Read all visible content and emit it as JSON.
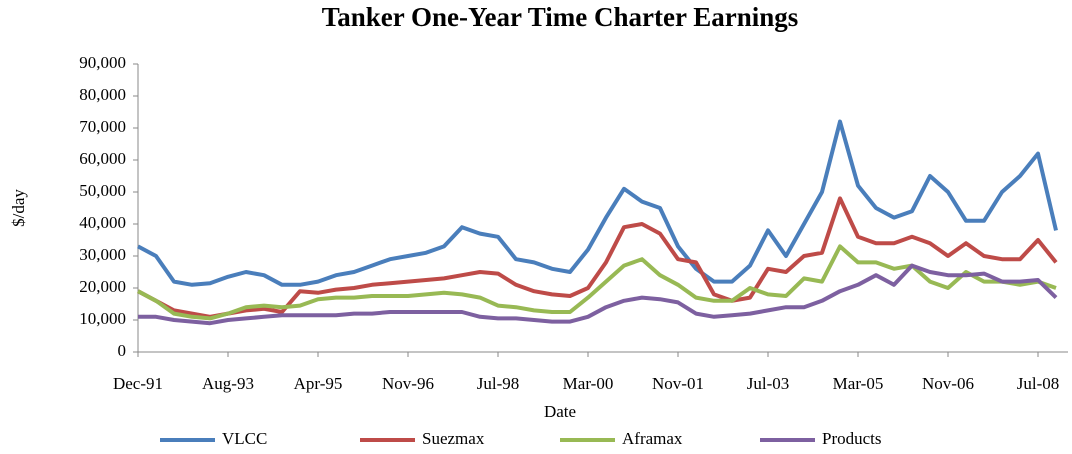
{
  "chart_data": {
    "type": "line",
    "title": "Tanker One-Year Time Charter Earnings",
    "x_label": "Date",
    "y_label": "$/day",
    "categories": [
      "Dec-91",
      null,
      null,
      null,
      null,
      "Aug-93",
      null,
      null,
      null,
      null,
      "Apr-95",
      null,
      null,
      null,
      null,
      "Nov-96",
      null,
      null,
      null,
      null,
      "Jul-98",
      null,
      null,
      null,
      null,
      "Mar-00",
      null,
      null,
      null,
      null,
      "Nov-01",
      null,
      null,
      null,
      null,
      "Jul-03",
      null,
      null,
      null,
      null,
      "Mar-05",
      null,
      null,
      null,
      null,
      "Nov-06",
      null,
      null,
      null,
      null,
      "Jul-08",
      null
    ],
    "series": [
      {
        "name": "VLCC",
        "color": "#4a7ebb",
        "values": [
          33000,
          30000,
          22000,
          21000,
          21500,
          23500,
          25000,
          24000,
          21000,
          21000,
          22000,
          24000,
          25000,
          27000,
          29000,
          30000,
          31000,
          33000,
          39000,
          37000,
          36000,
          29000,
          28000,
          26000,
          25000,
          32000,
          42000,
          51000,
          47000,
          45000,
          33000,
          26000,
          22000,
          22000,
          27000,
          38000,
          30000,
          40000,
          50000,
          72000,
          52000,
          45000,
          42000,
          44000,
          55000,
          50000,
          41000,
          41000,
          50000,
          55000,
          62000,
          38000
        ]
      },
      {
        "name": "Suezmax",
        "color": "#be4b48",
        "values": [
          19000,
          16000,
          13000,
          12000,
          11000,
          12000,
          13000,
          13500,
          12500,
          19000,
          18500,
          19500,
          20000,
          21000,
          21500,
          22000,
          22500,
          23000,
          24000,
          25000,
          24500,
          21000,
          19000,
          18000,
          17500,
          20000,
          28000,
          39000,
          40000,
          37000,
          29000,
          28000,
          18000,
          16000,
          17000,
          26000,
          25000,
          30000,
          31000,
          48000,
          36000,
          34000,
          34000,
          36000,
          34000,
          30000,
          34000,
          30000,
          29000,
          29000,
          35000,
          28000
        ]
      },
      {
        "name": "Aframax",
        "color": "#98b954",
        "values": [
          19000,
          16000,
          12000,
          11000,
          10500,
          12000,
          14000,
          14500,
          14000,
          14500,
          16500,
          17000,
          17000,
          17500,
          17500,
          17500,
          18000,
          18500,
          18000,
          17000,
          14500,
          14000,
          13000,
          12500,
          12500,
          17000,
          22000,
          27000,
          29000,
          24000,
          21000,
          17000,
          16000,
          16000,
          20000,
          18000,
          17500,
          23000,
          22000,
          33000,
          28000,
          28000,
          26000,
          27000,
          22000,
          20000,
          25000,
          22000,
          22000,
          21000,
          22000,
          20000
        ]
      },
      {
        "name": "Products",
        "color": "#7d60a0",
        "values": [
          11000,
          11000,
          10000,
          9500,
          9000,
          10000,
          10500,
          11000,
          11500,
          11500,
          11500,
          11500,
          12000,
          12000,
          12500,
          12500,
          12500,
          12500,
          12500,
          11000,
          10500,
          10500,
          10000,
          9500,
          9500,
          11000,
          14000,
          16000,
          17000,
          16500,
          15500,
          12000,
          11000,
          11500,
          12000,
          13000,
          14000,
          14000,
          16000,
          19000,
          21000,
          24000,
          21000,
          27000,
          25000,
          24000,
          24000,
          24500,
          22000,
          22000,
          22500,
          17000
        ]
      }
    ],
    "ylim": [
      0,
      90000
    ],
    "yticks": [
      0,
      {
        "value": 10000,
        "label": "10,000"
      },
      {
        "value": 20000,
        "label": "20,000"
      },
      {
        "value": 30000,
        "label": "30,000"
      },
      {
        "value": 40000,
        "label": "40,000"
      },
      {
        "value": 50000,
        "label": "50,000"
      },
      {
        "value": 60000,
        "label": "60,000"
      },
      {
        "value": 70000,
        "label": "70,000"
      },
      {
        "value": 80000,
        "label": "80,000"
      },
      {
        "value": 90000,
        "label": "90,000"
      }
    ],
    "grid": false,
    "legend": "bottom"
  }
}
